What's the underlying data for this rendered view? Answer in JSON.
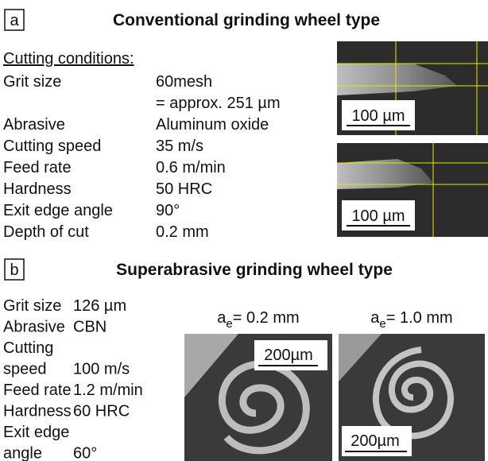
{
  "panel_a": {
    "label": "a",
    "title": "Conventional grinding wheel type",
    "subheading": "Cutting conditions:",
    "conditions": [
      {
        "label": [
          "Grit size"
        ],
        "value": [
          "60mesh",
          "= approx. 251 µm"
        ]
      },
      {
        "label": [
          "Abrasive"
        ],
        "value": [
          "Aluminum oxide"
        ]
      },
      {
        "label": [
          "Cutting speed"
        ],
        "value": [
          "35 m/s"
        ]
      },
      {
        "label": [
          "Feed rate"
        ],
        "value": [
          "0.6 m/min"
        ]
      },
      {
        "label": [
          "Hardness"
        ],
        "value": [
          "50 HRC"
        ]
      },
      {
        "label": [
          "Exit edge angle"
        ],
        "value": [
          "90°"
        ]
      },
      {
        "label": [
          "Depth of cut"
        ],
        "value": [
          "0.2 mm"
        ]
      }
    ],
    "images": [
      {
        "scale_bar": "100 µm"
      },
      {
        "scale_bar": "100 µm"
      }
    ]
  },
  "panel_b": {
    "label": "b",
    "title": "Superabrasive grinding wheel type",
    "conditions": [
      {
        "label": [
          "Grit size"
        ],
        "value": [
          "126 µm"
        ]
      },
      {
        "label": [
          "Abrasive"
        ],
        "value": [
          "CBN"
        ]
      },
      {
        "label": [
          "Cutting",
          "speed"
        ],
        "value": [
          "100 m/s"
        ]
      },
      {
        "label": [
          "Feed rate"
        ],
        "value": [
          "1.2 m/min"
        ]
      },
      {
        "label": [
          "Hardness"
        ],
        "value": [
          "60 HRC"
        ]
      },
      {
        "label": [
          "Exit edge",
          "angle"
        ],
        "value": [
          "60°"
        ]
      }
    ],
    "images": [
      {
        "caption": {
          "symbol": "a",
          "subscript": "e",
          "text": "= 0.2 mm"
        },
        "scale_bar": "200µm"
      },
      {
        "caption": {
          "symbol": "a",
          "subscript": "e",
          "text": "= 1.0 mm"
        },
        "scale_bar": "200µm"
      }
    ]
  }
}
